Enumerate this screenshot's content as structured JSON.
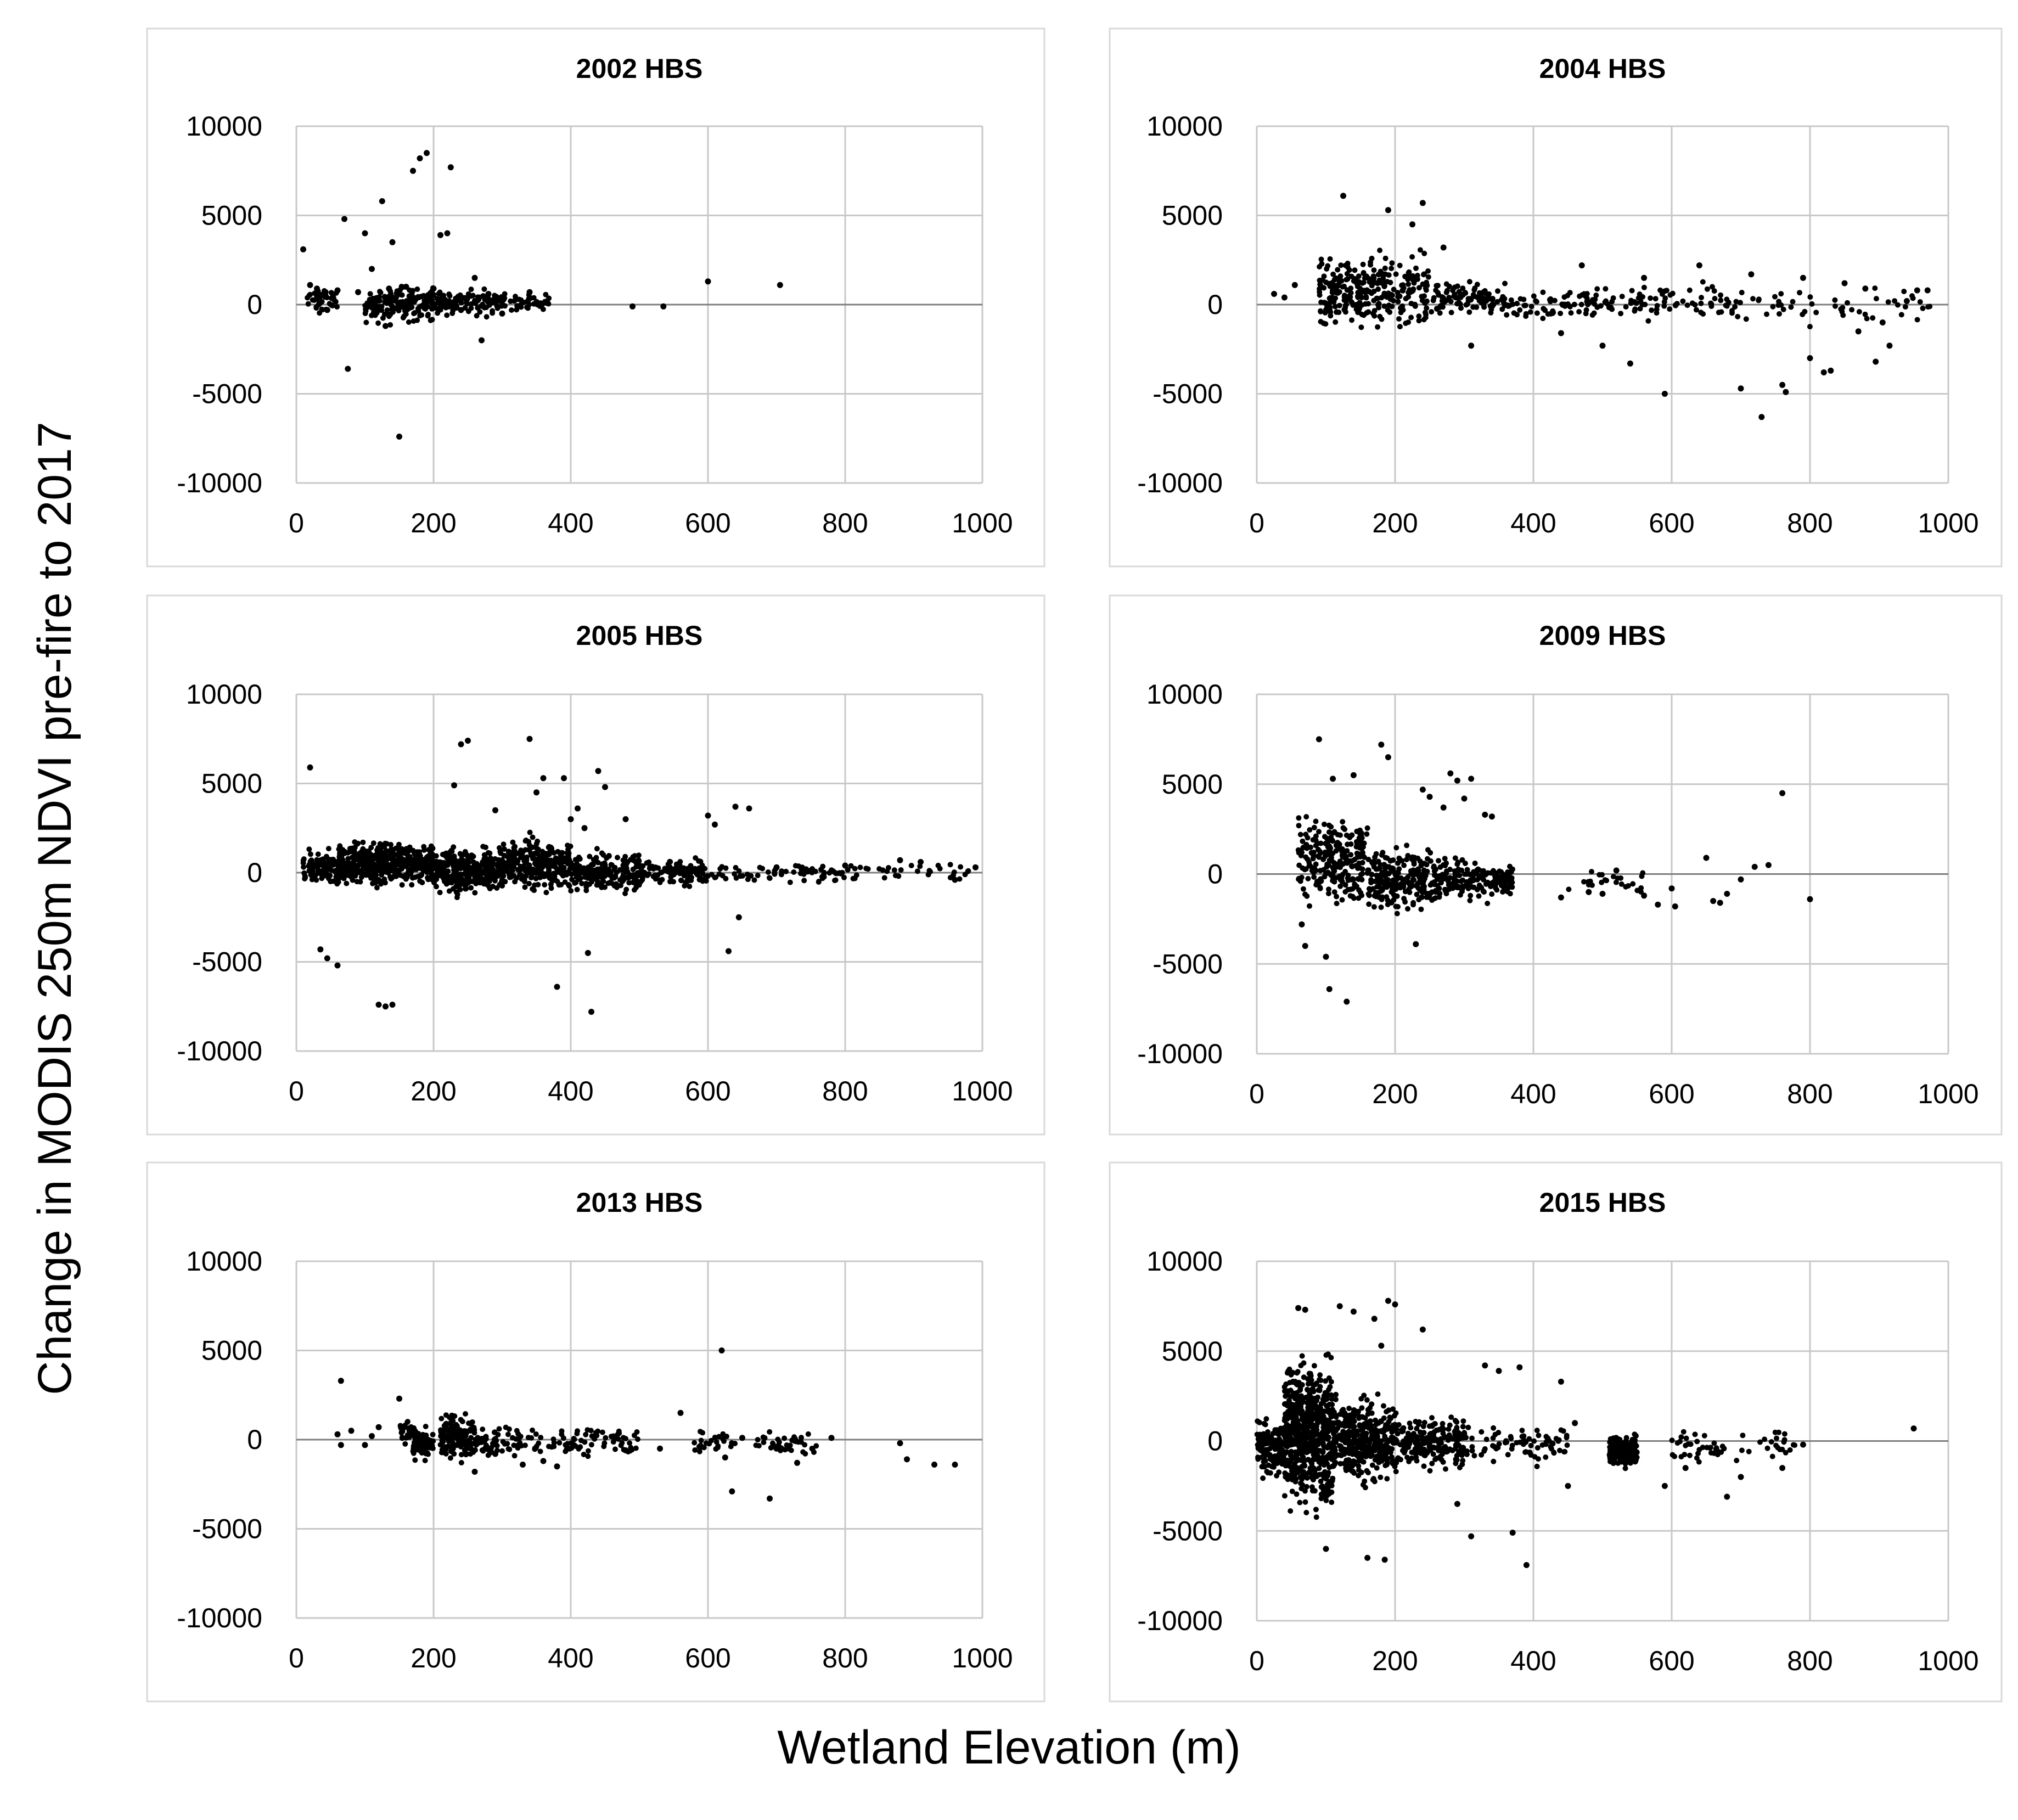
{
  "figure": {
    "ylabel": "Change in MODIS 250m NDVI pre-fire to 2017",
    "xlabel": "Wetland Elevation (m)"
  },
  "chart_data": [
    {
      "type": "scatter",
      "title": "2002 HBS",
      "xlim": [
        0,
        1000
      ],
      "ylim": [
        -10000,
        10000
      ],
      "xticks": [
        0,
        200,
        400,
        600,
        800,
        1000
      ],
      "yticks": [
        10000,
        5000,
        0,
        -5000,
        -10000
      ],
      "grid": true,
      "points": [
        [
          10,
          3100
        ],
        [
          20,
          1100
        ],
        [
          30,
          900
        ],
        [
          40,
          600
        ],
        [
          45,
          -300
        ],
        [
          60,
          800
        ],
        [
          70,
          4800
        ],
        [
          75,
          -3600
        ],
        [
          90,
          700
        ],
        [
          100,
          4000
        ],
        [
          110,
          2000
        ],
        [
          125,
          5800
        ],
        [
          130,
          -1200
        ],
        [
          135,
          900
        ],
        [
          140,
          3500
        ],
        [
          150,
          -7400
        ],
        [
          160,
          1000
        ],
        [
          170,
          7500
        ],
        [
          180,
          8200
        ],
        [
          190,
          8500
        ],
        [
          200,
          900
        ],
        [
          210,
          3900
        ],
        [
          220,
          4000
        ],
        [
          225,
          7700
        ],
        [
          240,
          -300
        ],
        [
          260,
          1500
        ],
        [
          270,
          -2000
        ],
        [
          280,
          600
        ],
        [
          300,
          -500
        ],
        [
          320,
          300
        ],
        [
          340,
          700
        ],
        [
          365,
          100
        ],
        [
          490,
          -100
        ],
        [
          535,
          -100
        ],
        [
          600,
          1300
        ],
        [
          705,
          1100
        ]
      ],
      "clusters": [
        {
          "x": [
            15,
            60
          ],
          "y": [
            -700,
            1100
          ],
          "n": 40
        },
        {
          "x": [
            100,
            200
          ],
          "y": [
            -1300,
            1400
          ],
          "n": 170
        },
        {
          "x": [
            200,
            300
          ],
          "y": [
            -800,
            1000
          ],
          "n": 110
        },
        {
          "x": [
            300,
            370
          ],
          "y": [
            -600,
            800
          ],
          "n": 40
        }
      ]
    },
    {
      "type": "scatter",
      "title": "2004 HBS",
      "xlim": [
        0,
        1000
      ],
      "ylim": [
        -10000,
        10000
      ],
      "xticks": [
        0,
        200,
        400,
        600,
        800,
        1000
      ],
      "yticks": [
        10000,
        5000,
        0,
        -5000,
        -10000
      ],
      "grid": true,
      "points": [
        [
          25,
          600
        ],
        [
          40,
          400
        ],
        [
          55,
          1100
        ],
        [
          125,
          6100
        ],
        [
          190,
          5300
        ],
        [
          225,
          4500
        ],
        [
          240,
          5700
        ],
        [
          270,
          3200
        ],
        [
          310,
          -2300
        ],
        [
          440,
          -1600
        ],
        [
          470,
          2200
        ],
        [
          500,
          -2300
        ],
        [
          540,
          -3300
        ],
        [
          560,
          1500
        ],
        [
          590,
          -5000
        ],
        [
          640,
          2200
        ],
        [
          700,
          -4700
        ],
        [
          715,
          1700
        ],
        [
          730,
          -6300
        ],
        [
          760,
          -4500
        ],
        [
          765,
          -4900
        ],
        [
          790,
          1500
        ],
        [
          800,
          -3000
        ],
        [
          820,
          -3800
        ],
        [
          830,
          -3700
        ],
        [
          850,
          1200
        ],
        [
          870,
          -1500
        ],
        [
          880,
          900
        ],
        [
          895,
          -3200
        ],
        [
          905,
          -1000
        ],
        [
          915,
          -2300
        ],
        [
          940,
          200
        ],
        [
          955,
          800
        ],
        [
          970,
          800
        ]
      ],
      "clusters": [
        {
          "x": [
            90,
            150
          ],
          "y": [
            -1700,
            3200
          ],
          "n": 130
        },
        {
          "x": [
            150,
            250
          ],
          "y": [
            -2000,
            3600
          ],
          "n": 160
        },
        {
          "x": [
            250,
            350
          ],
          "y": [
            -900,
            1500
          ],
          "n": 90
        },
        {
          "x": [
            350,
            500
          ],
          "y": [
            -1000,
            1300
          ],
          "n": 80
        },
        {
          "x": [
            500,
            700
          ],
          "y": [
            -1200,
            1600
          ],
          "n": 80
        },
        {
          "x": [
            700,
            980
          ],
          "y": [
            -1500,
            1400
          ],
          "n": 50
        }
      ]
    },
    {
      "type": "scatter",
      "title": "2005 HBS",
      "xlim": [
        0,
        1000
      ],
      "ylim": [
        -10000,
        10000
      ],
      "xticks": [
        0,
        200,
        400,
        600,
        800,
        1000
      ],
      "yticks": [
        10000,
        5000,
        0,
        -5000,
        -10000
      ],
      "grid": true,
      "points": [
        [
          20,
          5900
        ],
        [
          35,
          -4300
        ],
        [
          45,
          -4800
        ],
        [
          60,
          -5200
        ],
        [
          120,
          -7400
        ],
        [
          130,
          -7500
        ],
        [
          140,
          -7400
        ],
        [
          230,
          4900
        ],
        [
          240,
          7200
        ],
        [
          250,
          7400
        ],
        [
          290,
          3500
        ],
        [
          340,
          7500
        ],
        [
          350,
          4500
        ],
        [
          360,
          5300
        ],
        [
          380,
          -6400
        ],
        [
          390,
          5300
        ],
        [
          400,
          3000
        ],
        [
          410,
          3600
        ],
        [
          420,
          2500
        ],
        [
          425,
          -4500
        ],
        [
          430,
          -7800
        ],
        [
          440,
          5700
        ],
        [
          450,
          4800
        ],
        [
          480,
          3000
        ],
        [
          600,
          3200
        ],
        [
          610,
          2700
        ],
        [
          630,
          -4400
        ],
        [
          640,
          3700
        ],
        [
          645,
          -2500
        ],
        [
          660,
          3600
        ],
        [
          700,
          300
        ],
        [
          800,
          400
        ],
        [
          880,
          700
        ],
        [
          910,
          600
        ],
        [
          960,
          -400
        ],
        [
          990,
          300
        ]
      ],
      "clusters": [
        {
          "x": [
            10,
            60
          ],
          "y": [
            -1200,
            1500
          ],
          "n": 90
        },
        {
          "x": [
            60,
            200
          ],
          "y": [
            -1000,
            2000
          ],
          "n": 450
        },
        {
          "x": [
            200,
            300
          ],
          "y": [
            -1500,
            1800
          ],
          "n": 300
        },
        {
          "x": [
            300,
            400
          ],
          "y": [
            -1500,
            2500
          ],
          "n": 260
        },
        {
          "x": [
            400,
            500
          ],
          "y": [
            -1500,
            1500
          ],
          "n": 200
        },
        {
          "x": [
            500,
            600
          ],
          "y": [
            -1000,
            1000
          ],
          "n": 120
        },
        {
          "x": [
            600,
            800
          ],
          "y": [
            -700,
            700
          ],
          "n": 70
        },
        {
          "x": [
            800,
            980
          ],
          "y": [
            -600,
            700
          ],
          "n": 35
        }
      ]
    },
    {
      "type": "scatter",
      "title": "2009 HBS",
      "xlim": [
        0,
        1000
      ],
      "ylim": [
        -10000,
        10000
      ],
      "xticks": [
        0,
        200,
        400,
        600,
        800,
        1000
      ],
      "yticks": [
        10000,
        5000,
        0,
        -5000,
        -10000
      ],
      "grid": true,
      "points": [
        [
          65,
          -2800
        ],
        [
          70,
          -4000
        ],
        [
          90,
          7500
        ],
        [
          100,
          -4600
        ],
        [
          105,
          -6400
        ],
        [
          110,
          5300
        ],
        [
          130,
          -7100
        ],
        [
          140,
          5500
        ],
        [
          180,
          7200
        ],
        [
          190,
          6500
        ],
        [
          230,
          -3900
        ],
        [
          240,
          4700
        ],
        [
          250,
          4300
        ],
        [
          270,
          3700
        ],
        [
          280,
          5600
        ],
        [
          290,
          5200
        ],
        [
          300,
          4200
        ],
        [
          310,
          5300
        ],
        [
          330,
          3300
        ],
        [
          340,
          3200
        ],
        [
          440,
          -1300
        ],
        [
          480,
          -1000
        ],
        [
          500,
          -1100
        ],
        [
          520,
          200
        ],
        [
          560,
          -1200
        ],
        [
          580,
          -1700
        ],
        [
          600,
          -800
        ],
        [
          605,
          -1800
        ],
        [
          650,
          900
        ],
        [
          660,
          -1500
        ],
        [
          670,
          -1600
        ],
        [
          680,
          -1100
        ],
        [
          700,
          -300
        ],
        [
          720,
          400
        ],
        [
          740,
          500
        ],
        [
          760,
          4500
        ],
        [
          800,
          -1400
        ]
      ],
      "clusters": [
        {
          "x": [
            60,
            100
          ],
          "y": [
            -2500,
            4200
          ],
          "n": 80
        },
        {
          "x": [
            100,
            160
          ],
          "y": [
            -2200,
            3800
          ],
          "n": 160
        },
        {
          "x": [
            160,
            260
          ],
          "y": [
            -2700,
            2000
          ],
          "n": 240
        },
        {
          "x": [
            260,
            370
          ],
          "y": [
            -1800,
            1200
          ],
          "n": 160
        },
        {
          "x": [
            450,
            560
          ],
          "y": [
            -1200,
            500
          ],
          "n": 25
        }
      ]
    },
    {
      "type": "scatter",
      "title": "2013 HBS",
      "xlim": [
        0,
        1000
      ],
      "ylim": [
        -10000,
        10000
      ],
      "xticks": [
        0,
        200,
        400,
        600,
        800,
        1000
      ],
      "yticks": [
        10000,
        5000,
        0,
        -5000,
        -10000
      ],
      "grid": true,
      "points": [
        [
          60,
          300
        ],
        [
          65,
          3300
        ],
        [
          65,
          -300
        ],
        [
          80,
          500
        ],
        [
          100,
          -300
        ],
        [
          110,
          200
        ],
        [
          120,
          700
        ],
        [
          150,
          2300
        ],
        [
          260,
          -1800
        ],
        [
          290,
          -800
        ],
        [
          330,
          -1400
        ],
        [
          360,
          -1200
        ],
        [
          380,
          -1500
        ],
        [
          480,
          -600
        ],
        [
          530,
          -500
        ],
        [
          560,
          1500
        ],
        [
          590,
          -400
        ],
        [
          620,
          5000
        ],
        [
          625,
          -1000
        ],
        [
          635,
          -2900
        ],
        [
          650,
          100
        ],
        [
          690,
          -3300
        ],
        [
          700,
          -500
        ],
        [
          730,
          -1300
        ],
        [
          780,
          100
        ],
        [
          880,
          -200
        ],
        [
          890,
          -1100
        ],
        [
          930,
          -1400
        ],
        [
          960,
          -1400
        ]
      ],
      "clusters": [
        {
          "x": [
            150,
            175
          ],
          "y": [
            -500,
            1500
          ],
          "n": 30
        },
        {
          "x": [
            170,
            200
          ],
          "y": [
            -1500,
            1000
          ],
          "n": 70
        },
        {
          "x": [
            210,
            260
          ],
          "y": [
            -1500,
            1800
          ],
          "n": 140
        },
        {
          "x": [
            260,
            330
          ],
          "y": [
            -1200,
            1000
          ],
          "n": 60
        },
        {
          "x": [
            330,
            500
          ],
          "y": [
            -1200,
            1100
          ],
          "n": 80
        },
        {
          "x": [
            580,
            640
          ],
          "y": [
            -900,
            700
          ],
          "n": 25
        },
        {
          "x": [
            660,
            760
          ],
          "y": [
            -1300,
            800
          ],
          "n": 40
        }
      ]
    },
    {
      "type": "scatter",
      "title": "2015 HBS",
      "xlim": [
        0,
        1000
      ],
      "ylim": [
        -10000,
        10000
      ],
      "xticks": [
        0,
        200,
        400,
        600,
        800,
        1000
      ],
      "yticks": [
        10000,
        5000,
        0,
        -5000,
        -10000
      ],
      "grid": true,
      "points": [
        [
          60,
          7400
        ],
        [
          70,
          7300
        ],
        [
          100,
          -6000
        ],
        [
          120,
          7500
        ],
        [
          140,
          7200
        ],
        [
          160,
          -6500
        ],
        [
          170,
          6800
        ],
        [
          180,
          5300
        ],
        [
          185,
          -6600
        ],
        [
          190,
          7800
        ],
        [
          200,
          7600
        ],
        [
          240,
          6200
        ],
        [
          290,
          -3500
        ],
        [
          310,
          -5300
        ],
        [
          330,
          4200
        ],
        [
          350,
          3900
        ],
        [
          370,
          -5100
        ],
        [
          380,
          4100
        ],
        [
          390,
          -6900
        ],
        [
          440,
          3300
        ],
        [
          450,
          -2500
        ],
        [
          460,
          1000
        ],
        [
          590,
          -2500
        ],
        [
          620,
          -1500
        ],
        [
          680,
          -3100
        ],
        [
          700,
          -2000
        ],
        [
          760,
          -1500
        ],
        [
          790,
          -200
        ],
        [
          950,
          700
        ]
      ],
      "clusters": [
        {
          "x": [
            0,
            40
          ],
          "y": [
            -2500,
            1500
          ],
          "n": 120
        },
        {
          "x": [
            40,
            110
          ],
          "y": [
            -5000,
            5800
          ],
          "n": 600
        },
        {
          "x": [
            110,
            200
          ],
          "y": [
            -3000,
            3000
          ],
          "n": 380
        },
        {
          "x": [
            200,
            300
          ],
          "y": [
            -2000,
            1800
          ],
          "n": 200
        },
        {
          "x": [
            300,
            450
          ],
          "y": [
            -1500,
            1200
          ],
          "n": 80
        },
        {
          "x": [
            510,
            550
          ],
          "y": [
            -1600,
            500
          ],
          "n": 220
        },
        {
          "x": [
            600,
            780
          ],
          "y": [
            -1500,
            700
          ],
          "n": 60
        }
      ]
    }
  ]
}
